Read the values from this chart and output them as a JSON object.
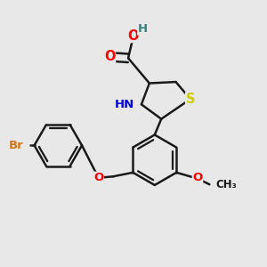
{
  "background_color": "#e8e8e8",
  "bond_color": "#1a1a1a",
  "bond_width": 1.8,
  "atom_colors": {
    "O": "#ff0000",
    "N": "#0000cc",
    "S": "#cccc00",
    "Br": "#cc7722",
    "H": "#3a8080"
  },
  "fs": 9.5,
  "dbl_off": 0.012
}
